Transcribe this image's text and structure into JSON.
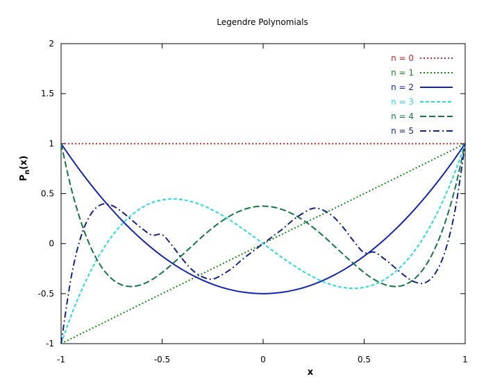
{
  "chart_data": {
    "type": "line",
    "title": "Legendre Polynomials",
    "xlabel": "x",
    "ylabel": "P",
    "ylabel_sub": "n",
    "ylabel_suffix": "(x)",
    "xlim": [
      -1,
      1
    ],
    "ylim": [
      -1,
      2
    ],
    "xticks": [
      -1,
      -0.5,
      0,
      0.5,
      1
    ],
    "xtick_labels": [
      "-1",
      "-0.5",
      "0",
      "0.5",
      "1"
    ],
    "yticks": [
      -1,
      -0.5,
      0,
      0.5,
      1,
      1.5,
      2
    ],
    "ytick_labels": [
      "-1",
      "-0.5",
      "0",
      "0.5",
      "1",
      "1.5",
      "2"
    ],
    "grid": false,
    "legend_position": "top-right",
    "x": [
      -1,
      -0.95,
      -0.9,
      -0.85,
      -0.8,
      -0.75,
      -0.7,
      -0.65,
      -0.6,
      -0.55,
      -0.5,
      -0.45,
      -0.4,
      -0.35,
      -0.3,
      -0.25,
      -0.2,
      -0.15,
      -0.1,
      -0.05,
      0,
      0.05,
      0.1,
      0.15,
      0.2,
      0.25,
      0.3,
      0.35,
      0.4,
      0.45,
      0.5,
      0.55,
      0.6,
      0.65,
      0.7,
      0.75,
      0.8,
      0.85,
      0.9,
      0.95,
      1
    ],
    "series": [
      {
        "name": "n = 0",
        "color": "#cc2222",
        "dash": "dotted",
        "values": [
          1,
          1,
          1,
          1,
          1,
          1,
          1,
          1,
          1,
          1,
          1,
          1,
          1,
          1,
          1,
          1,
          1,
          1,
          1,
          1,
          1,
          1,
          1,
          1,
          1,
          1,
          1,
          1,
          1,
          1,
          1,
          1,
          1,
          1,
          1,
          1,
          1,
          1,
          1,
          1,
          1
        ]
      },
      {
        "name": "n = 1",
        "color": "#118811",
        "dash": "dotted",
        "values": [
          -1,
          -0.95,
          -0.9,
          -0.85,
          -0.8,
          -0.75,
          -0.7,
          -0.65,
          -0.6,
          -0.55,
          -0.5,
          -0.45,
          -0.4,
          -0.35,
          -0.3,
          -0.25,
          -0.2,
          -0.15,
          -0.1,
          -0.05,
          0,
          0.05,
          0.1,
          0.15,
          0.2,
          0.25,
          0.3,
          0.35,
          0.4,
          0.45,
          0.5,
          0.55,
          0.6,
          0.65,
          0.7,
          0.75,
          0.8,
          0.85,
          0.9,
          0.95,
          1
        ]
      },
      {
        "name": "n = 2",
        "color": "#1122bb",
        "dash": "solid",
        "values": [
          1,
          0.854,
          0.715,
          0.584,
          0.46,
          0.344,
          0.235,
          0.134,
          0.04,
          -0.046,
          -0.125,
          -0.196,
          -0.26,
          -0.316,
          -0.365,
          -0.406,
          -0.44,
          -0.466,
          -0.485,
          -0.496,
          -0.5,
          -0.496,
          -0.485,
          -0.466,
          -0.44,
          -0.406,
          -0.365,
          -0.316,
          -0.26,
          -0.196,
          -0.125,
          -0.046,
          0.04,
          0.134,
          0.235,
          0.344,
          0.46,
          0.584,
          0.715,
          0.854,
          1
        ]
      },
      {
        "name": "n = 3",
        "color": "#22dddd",
        "dash": "dashed",
        "values": [
          -1,
          -0.7184,
          -0.4725,
          -0.2603,
          -0.08,
          0.0703,
          0.1925,
          0.2884,
          0.36,
          0.4091,
          0.4375,
          0.4472,
          0.44,
          0.4179,
          0.3825,
          0.3359,
          0.28,
          0.2166,
          0.1475,
          0.0747,
          0,
          -0.0747,
          -0.1475,
          -0.2166,
          -0.28,
          -0.3359,
          -0.3825,
          -0.4179,
          -0.44,
          -0.4472,
          -0.4375,
          -0.4091,
          -0.36,
          -0.2884,
          -0.1925,
          -0.0703,
          0.08,
          0.2603,
          0.4725,
          0.7184,
          1
        ]
      },
      {
        "name": "n = 4",
        "color": "#117744",
        "dash": "longdash",
        "values": [
          1,
          0.5541,
          0.2079,
          -0.0504,
          -0.233,
          -0.3501,
          -0.4121,
          -0.4284,
          -0.408,
          -0.3593,
          -0.2891,
          -0.204,
          -0.113,
          -0.0196,
          0.0729,
          0.1577,
          0.232,
          0.2928,
          0.3379,
          0.3657,
          0.375,
          0.3657,
          0.3379,
          0.2928,
          0.232,
          0.1577,
          0.0729,
          -0.0196,
          -0.113,
          -0.204,
          -0.2891,
          -0.3593,
          -0.408,
          -0.4284,
          -0.4121,
          -0.3501,
          -0.233,
          -0.0504,
          0.2079,
          0.5541,
          1
        ]
      },
      {
        "name": "n = 5",
        "color": "#112288",
        "dash": "dashdot",
        "values": [
          -1,
          -0.3349,
          0.0812,
          0.3031,
          0.3918,
          0.3829,
          0.3199,
          0.2354,
          0.1526,
          0.085,
          0.0898,
          -0.0205,
          -0.1526,
          -0.2649,
          -0.3326,
          -0.3544,
          -0.3075,
          -0.2401,
          -0.1526,
          -0.0759,
          0,
          0.0759,
          0.1526,
          0.2401,
          0.3075,
          0.3544,
          0.3326,
          0.2649,
          0.1526,
          0.0205,
          -0.0898,
          -0.085,
          -0.1526,
          -0.2354,
          -0.3199,
          -0.3829,
          -0.3918,
          -0.3031,
          -0.0812,
          0.3349,
          1
        ]
      }
    ]
  }
}
